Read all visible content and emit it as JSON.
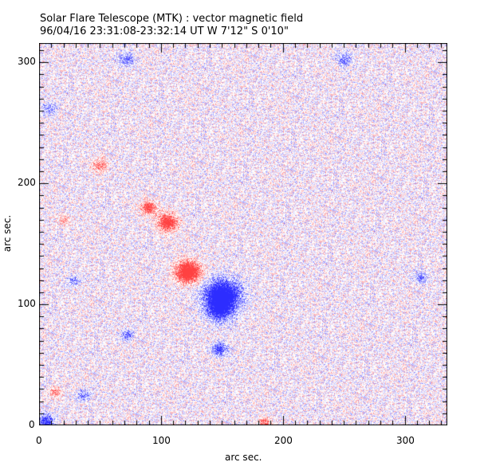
{
  "chart_data": {
    "type": "heatmap",
    "title": "Solar Flare Telescope (MTK) : vector magnetic field",
    "subtitle": "96/04/16  23:31:08-23:32:14 UT    W 7'12\"  S 0'10\"",
    "xlabel": "arc sec.",
    "ylabel": "arc sec.",
    "xlim": [
      0,
      335
    ],
    "ylim": [
      0,
      316
    ],
    "xticks": [
      "0",
      "100",
      "200",
      "300"
    ],
    "yticks": [
      "0",
      "100",
      "200",
      "300"
    ],
    "colors": {
      "positive": "#ff4040",
      "negative": "#3030ff",
      "background": "#ffffff"
    },
    "features": [
      {
        "polarity": "positive",
        "x": 122,
        "y": 127,
        "strength": 1.0,
        "radius": 10
      },
      {
        "polarity": "positive",
        "x": 105,
        "y": 168,
        "strength": 0.8,
        "radius": 8
      },
      {
        "polarity": "positive",
        "x": 90,
        "y": 180,
        "strength": 0.7,
        "radius": 6
      },
      {
        "polarity": "positive",
        "x": 50,
        "y": 215,
        "strength": 0.4,
        "radius": 6
      },
      {
        "polarity": "positive",
        "x": 185,
        "y": 2,
        "strength": 0.5,
        "radius": 5
      },
      {
        "polarity": "positive",
        "x": 13,
        "y": 28,
        "strength": 0.4,
        "radius": 5
      },
      {
        "polarity": "positive",
        "x": 20,
        "y": 170,
        "strength": 0.3,
        "radius": 5
      },
      {
        "polarity": "negative",
        "x": 150,
        "y": 108,
        "strength": 1.0,
        "radius": 14
      },
      {
        "polarity": "negative",
        "x": 148,
        "y": 95,
        "strength": 0.6,
        "radius": 10
      },
      {
        "polarity": "negative",
        "x": 148,
        "y": 63,
        "strength": 0.6,
        "radius": 6
      },
      {
        "polarity": "negative",
        "x": 5,
        "y": 3,
        "strength": 0.6,
        "radius": 7
      },
      {
        "polarity": "negative",
        "x": 36,
        "y": 25,
        "strength": 0.4,
        "radius": 5
      },
      {
        "polarity": "negative",
        "x": 72,
        "y": 75,
        "strength": 0.4,
        "radius": 5
      },
      {
        "polarity": "negative",
        "x": 72,
        "y": 303,
        "strength": 0.4,
        "radius": 6
      },
      {
        "polarity": "negative",
        "x": 250,
        "y": 303,
        "strength": 0.4,
        "radius": 6
      },
      {
        "polarity": "negative",
        "x": 313,
        "y": 122,
        "strength": 0.4,
        "radius": 5
      },
      {
        "polarity": "negative",
        "x": 28,
        "y": 120,
        "strength": 0.3,
        "radius": 5
      },
      {
        "polarity": "negative",
        "x": 8,
        "y": 262,
        "strength": 0.3,
        "radius": 6
      }
    ]
  }
}
